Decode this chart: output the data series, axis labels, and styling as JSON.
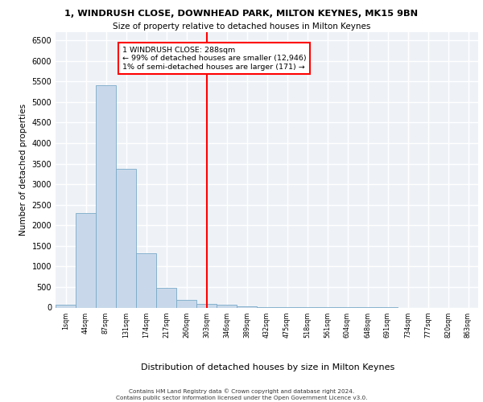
{
  "title1": "1, WINDRUSH CLOSE, DOWNHEAD PARK, MILTON KEYNES, MK15 9BN",
  "title2": "Size of property relative to detached houses in Milton Keynes",
  "xlabel": "Distribution of detached houses by size in Milton Keynes",
  "ylabel": "Number of detached properties",
  "categories": [
    "1sqm",
    "44sqm",
    "87sqm",
    "131sqm",
    "174sqm",
    "217sqm",
    "260sqm",
    "303sqm",
    "346sqm",
    "389sqm",
    "432sqm",
    "475sqm",
    "518sqm",
    "561sqm",
    "604sqm",
    "648sqm",
    "691sqm",
    "734sqm",
    "777sqm",
    "820sqm",
    "863sqm"
  ],
  "values": [
    70,
    2300,
    5400,
    3380,
    1320,
    480,
    190,
    80,
    60,
    30,
    10,
    5,
    5,
    3,
    2,
    1,
    1,
    0,
    0,
    0,
    0
  ],
  "bar_color": "#c8d8ea",
  "bar_edge_color": "#7aaac8",
  "marker_label": "1 WINDRUSH CLOSE: 288sqm",
  "annotation_line1": "← 99% of detached houses are smaller (12,946)",
  "annotation_line2": "1% of semi-detached houses are larger (171) →",
  "annotation_box_color": "white",
  "annotation_box_edge": "red",
  "marker_line_color": "red",
  "ylim": [
    0,
    6700
  ],
  "yticks": [
    0,
    500,
    1000,
    1500,
    2000,
    2500,
    3000,
    3500,
    4000,
    4500,
    5000,
    5500,
    6000,
    6500
  ],
  "background_color": "#eef2f7",
  "grid_color": "white",
  "footer1": "Contains HM Land Registry data © Crown copyright and database right 2024.",
  "footer2": "Contains public sector information licensed under the Open Government Licence v3.0."
}
